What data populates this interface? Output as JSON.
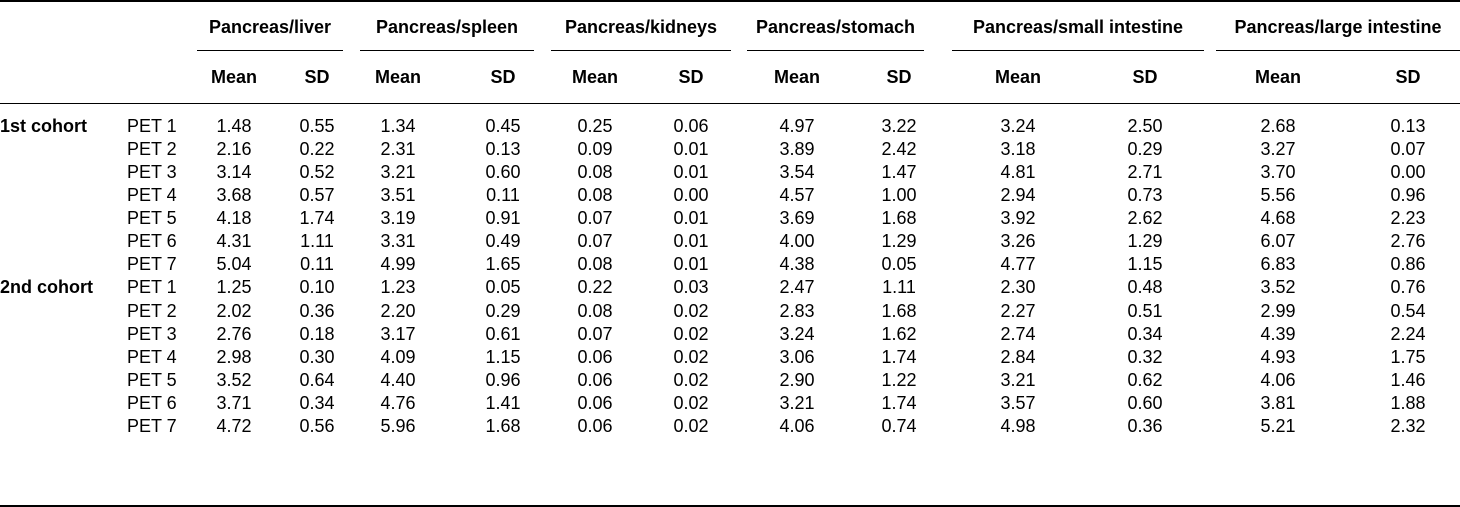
{
  "table": {
    "groups": [
      "Pancreas/liver",
      "Pancreas/spleen",
      "Pancreas/kidneys",
      "Pancreas/stomach",
      "Pancreas/small intestine",
      "Pancreas/large intestine"
    ],
    "subheaders": [
      "Mean",
      "SD"
    ],
    "cohorts": [
      {
        "label": "1st cohort",
        "rows": [
          {
            "pet": "PET 1",
            "values": [
              "1.48",
              "0.55",
              "1.34",
              "0.45",
              "0.25",
              "0.06",
              "4.97",
              "3.22",
              "3.24",
              "2.50",
              "2.68",
              "0.13"
            ]
          },
          {
            "pet": "PET 2",
            "values": [
              "2.16",
              "0.22",
              "2.31",
              "0.13",
              "0.09",
              "0.01",
              "3.89",
              "2.42",
              "3.18",
              "0.29",
              "3.27",
              "0.07"
            ]
          },
          {
            "pet": "PET 3",
            "values": [
              "3.14",
              "0.52",
              "3.21",
              "0.60",
              "0.08",
              "0.01",
              "3.54",
              "1.47",
              "4.81",
              "2.71",
              "3.70",
              "0.00"
            ]
          },
          {
            "pet": "PET 4",
            "values": [
              "3.68",
              "0.57",
              "3.51",
              "0.11",
              "0.08",
              "0.00",
              "4.57",
              "1.00",
              "2.94",
              "0.73",
              "5.56",
              "0.96"
            ]
          },
          {
            "pet": "PET 5",
            "values": [
              "4.18",
              "1.74",
              "3.19",
              "0.91",
              "0.07",
              "0.01",
              "3.69",
              "1.68",
              "3.92",
              "2.62",
              "4.68",
              "2.23"
            ]
          },
          {
            "pet": "PET 6",
            "values": [
              "4.31",
              "1.11",
              "3.31",
              "0.49",
              "0.07",
              "0.01",
              "4.00",
              "1.29",
              "3.26",
              "1.29",
              "6.07",
              "2.76"
            ]
          },
          {
            "pet": "PET 7",
            "values": [
              "5.04",
              "0.11",
              "4.99",
              "1.65",
              "0.08",
              "0.01",
              "4.38",
              "0.05",
              "4.77",
              "1.15",
              "6.83",
              "0.86"
            ]
          }
        ]
      },
      {
        "label": "2nd cohort",
        "rows": [
          {
            "pet": "PET 1",
            "values": [
              "1.25",
              "0.10",
              "1.23",
              "0.05",
              "0.22",
              "0.03",
              "2.47",
              "1.11",
              "2.30",
              "0.48",
              "3.52",
              "0.76"
            ]
          },
          {
            "pet": "PET 2",
            "values": [
              "2.02",
              "0.36",
              "2.20",
              "0.29",
              "0.08",
              "0.02",
              "2.83",
              "1.68",
              "2.27",
              "0.51",
              "2.99",
              "0.54"
            ]
          },
          {
            "pet": "PET 3",
            "values": [
              "2.76",
              "0.18",
              "3.17",
              "0.61",
              "0.07",
              "0.02",
              "3.24",
              "1.62",
              "2.74",
              "0.34",
              "4.39",
              "2.24"
            ]
          },
          {
            "pet": "PET 4",
            "values": [
              "2.98",
              "0.30",
              "4.09",
              "1.15",
              "0.06",
              "0.02",
              "3.06",
              "1.74",
              "2.84",
              "0.32",
              "4.93",
              "1.75"
            ]
          },
          {
            "pet": "PET 5",
            "values": [
              "3.52",
              "0.64",
              "4.40",
              "0.96",
              "0.06",
              "0.02",
              "2.90",
              "1.22",
              "3.21",
              "0.62",
              "4.06",
              "1.46"
            ]
          },
          {
            "pet": "PET 6",
            "values": [
              "3.71",
              "0.34",
              "4.76",
              "1.41",
              "0.06",
              "0.02",
              "3.21",
              "1.74",
              "3.57",
              "0.60",
              "3.81",
              "1.88"
            ]
          },
          {
            "pet": "PET 7",
            "values": [
              "4.72",
              "0.56",
              "5.96",
              "1.68",
              "0.06",
              "0.02",
              "4.06",
              "0.74",
              "4.98",
              "0.36",
              "5.21",
              "2.32"
            ]
          }
        ]
      }
    ]
  }
}
